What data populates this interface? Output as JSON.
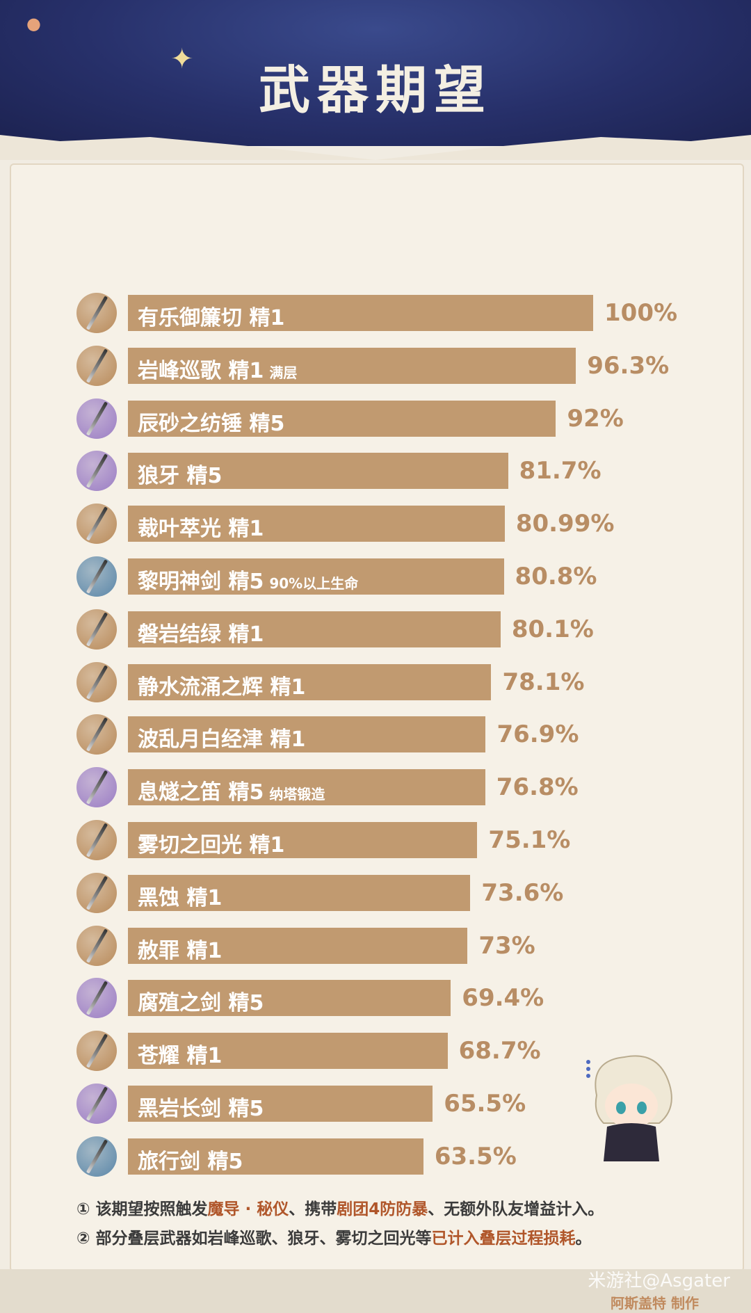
{
  "title": "武器期望",
  "chart_data": {
    "type": "bar",
    "orientation": "horizontal",
    "xlim": [
      0,
      100
    ],
    "unit": "%",
    "categories": [
      "有乐御簾切 精1",
      "岩峰巡歌 精1",
      "辰砂之纺锤 精5",
      "狼牙 精5",
      "裁叶萃光 精1",
      "黎明神剑 精5",
      "磐岩结绿 精1",
      "静水流涌之辉 精1",
      "波乱月白经津 精1",
      "息燧之笛 精5",
      "雾切之回光 精1",
      "黑蚀 精1",
      "赦罪 精1",
      "腐殖之剑 精5",
      "苍耀 精1",
      "黑岩长剑 精5",
      "旅行剑 精5"
    ],
    "notes": [
      "",
      "满层",
      "",
      "",
      "",
      "90%以上生命",
      "",
      "",
      "",
      "纳塔锻造",
      "",
      "",
      "",
      "",
      "",
      "",
      ""
    ],
    "values": [
      100,
      96.3,
      92,
      81.7,
      80.99,
      80.8,
      80.1,
      78.1,
      76.9,
      76.8,
      75.1,
      73.6,
      73,
      69.4,
      68.7,
      65.5,
      63.5
    ],
    "value_labels": [
      "100%",
      "96.3%",
      "92%",
      "81.7%",
      "80.99%",
      "80.8%",
      "80.1%",
      "78.1%",
      "76.9%",
      "76.8%",
      "75.1%",
      "73.6%",
      "73%",
      "69.4%",
      "68.7%",
      "65.5%",
      "63.5%"
    ],
    "icon_rarity": [
      "gold",
      "gold",
      "purple",
      "purple",
      "gold",
      "blue",
      "gold",
      "gold",
      "gold",
      "purple",
      "gold",
      "gold",
      "gold",
      "purple",
      "gold",
      "purple",
      "blue"
    ],
    "bar_color": "#c19a70",
    "value_color": "#b88d64"
  },
  "footnotes": {
    "n1": {
      "a": "① 该期望按照触发",
      "b": "魔导 · 秘仪",
      "c": "、携带",
      "d": "剧团4防防暴",
      "e": "、无额外队友增益计入。"
    },
    "n2": {
      "a": "② 部分叠层武器如岩峰巡歌、狼牙、雾切之回光等",
      "b": "已计入叠层过程损耗",
      "c": "。"
    }
  },
  "watermark": "米游社@Asgater",
  "credit": "阿斯盖特 制作",
  "colors": {
    "header": "#27306a",
    "highlight": "#b0562a",
    "rarity": {
      "gold": "#b88a5a",
      "purple": "#9a7cc4",
      "blue": "#5a86a8"
    }
  }
}
